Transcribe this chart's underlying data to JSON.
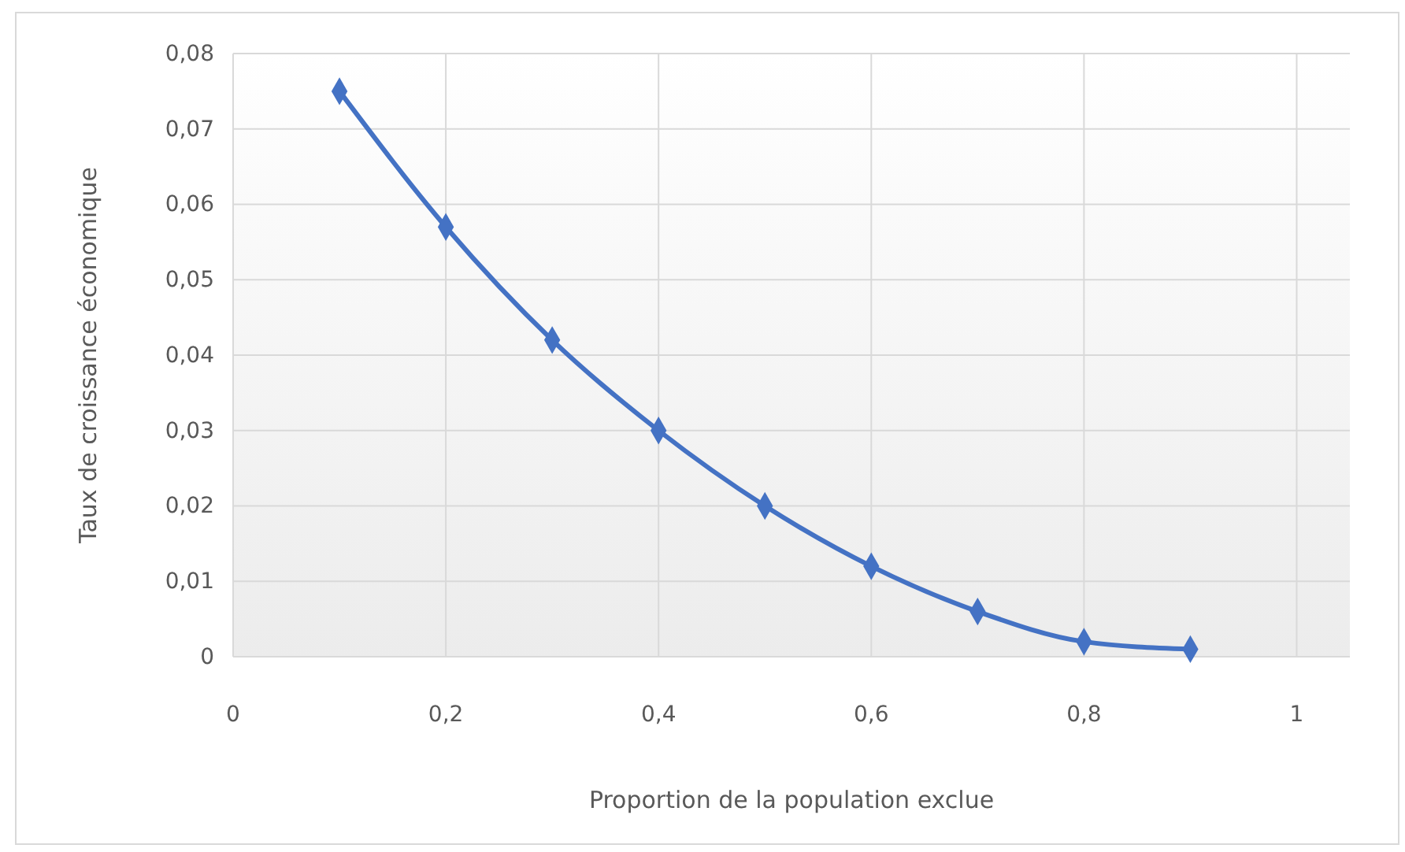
{
  "chart_data": {
    "type": "line",
    "xlabel": "Proportion de la population exclue",
    "ylabel": "Taux de croissance économique",
    "x": [
      0.1,
      0.2,
      0.3,
      0.4,
      0.5,
      0.6,
      0.7,
      0.8,
      0.9
    ],
    "series": [
      {
        "color": "#4472c4",
        "values": [
          0.075,
          0.057,
          0.042,
          0.03,
          0.02,
          0.012,
          0.006,
          0.002,
          0.001
        ]
      }
    ],
    "xlim": [
      0,
      1.05
    ],
    "xticks": [
      0,
      {
        "value": 0.2,
        "label": "0,2"
      },
      {
        "value": 0.4,
        "label": "0,4"
      },
      {
        "value": 0.6,
        "label": "0,6"
      },
      {
        "value": 0.8,
        "label": "0,8"
      },
      1
    ],
    "ylim": [
      0,
      0.08
    ],
    "yticks": [
      0,
      {
        "value": 0.01,
        "label": "0,01"
      },
      {
        "value": 0.02,
        "label": "0,02"
      },
      {
        "value": 0.03,
        "label": "0,03"
      },
      {
        "value": 0.04,
        "label": "0,04"
      },
      {
        "value": 0.05,
        "label": "0,05"
      },
      {
        "value": 0.06,
        "label": "0,06"
      },
      {
        "value": 0.07,
        "label": "0,07"
      },
      {
        "value": 0.08,
        "label": "0,08"
      }
    ],
    "grid": true,
    "marker": "diamond",
    "line_style": "solid"
  }
}
